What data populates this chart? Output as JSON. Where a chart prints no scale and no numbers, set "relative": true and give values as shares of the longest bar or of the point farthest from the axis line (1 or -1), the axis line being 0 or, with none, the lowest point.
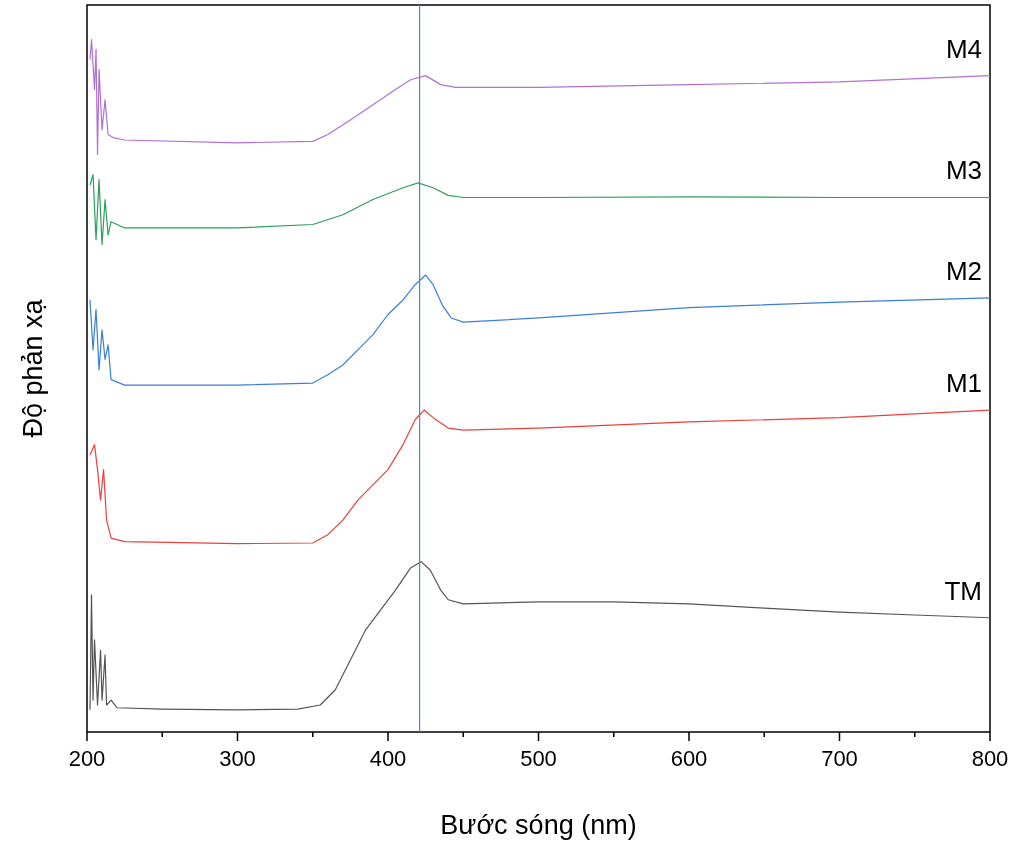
{
  "chart_data": {
    "type": "line",
    "relative": true,
    "xlabel": "Bước sóng (nm)",
    "ylabel": "Độ phản xạ",
    "xlim": [
      200,
      800
    ],
    "xticks": [
      200,
      {
        "value": 250,
        "label": null
      },
      300,
      {
        "value": 350,
        "label": null
      },
      400,
      {
        "value": 450,
        "label": null
      },
      500,
      {
        "value": 550,
        "label": null
      },
      600,
      {
        "value": 650,
        "label": null
      },
      700,
      {
        "value": 750,
        "label": null
      },
      800
    ],
    "grid": false,
    "tick_labels": "x",
    "ref_lines": [
      {
        "axis": "x",
        "value": 421,
        "color": "#3a8fdc"
      }
    ],
    "series": [
      {
        "name": "TM",
        "color": "#555555",
        "x": [
          202,
          203,
          204,
          205,
          207,
          209,
          210,
          212,
          213,
          216,
          220,
          250,
          300,
          340,
          355,
          365,
          375,
          385,
          395,
          405,
          415,
          422,
          428,
          435,
          440,
          450,
          500,
          550,
          600,
          650,
          700,
          750,
          800
        ],
        "values": [
          0.032,
          0.198,
          0.046,
          0.133,
          0.039,
          0.118,
          0.046,
          0.111,
          0.039,
          0.046,
          0.035,
          0.033,
          0.032,
          0.033,
          0.039,
          0.061,
          0.104,
          0.147,
          0.176,
          0.205,
          0.237,
          0.246,
          0.234,
          0.205,
          0.191,
          0.185,
          0.188,
          0.188,
          0.185,
          0.179,
          0.173,
          0.169,
          0.165
        ]
      },
      {
        "name": "M1",
        "color": "#e8413c",
        "x": [
          202,
          205,
          207,
          209,
          211,
          213,
          216,
          225,
          300,
          350,
          360,
          370,
          380,
          390,
          400,
          410,
          418,
          424,
          430,
          440,
          450,
          500,
          600,
          700,
          800
        ],
        "values": [
          0.4,
          0.415,
          0.379,
          0.335,
          0.379,
          0.306,
          0.28,
          0.275,
          0.272,
          0.273,
          0.285,
          0.306,
          0.335,
          0.357,
          0.379,
          0.415,
          0.451,
          0.465,
          0.454,
          0.439,
          0.436,
          0.439,
          0.448,
          0.454,
          0.465
        ]
      },
      {
        "name": "M2",
        "color": "#3a7fdc",
        "x": [
          202,
          204,
          206,
          208,
          210,
          212,
          214,
          216,
          225,
          300,
          350,
          360,
          370,
          380,
          390,
          400,
          410,
          418,
          425,
          430,
          436,
          442,
          450,
          500,
          600,
          700,
          800
        ],
        "values": [
          0.624,
          0.552,
          0.61,
          0.523,
          0.581,
          0.538,
          0.559,
          0.509,
          0.501,
          0.501,
          0.504,
          0.516,
          0.53,
          0.552,
          0.574,
          0.603,
          0.624,
          0.646,
          0.66,
          0.646,
          0.617,
          0.598,
          0.592,
          0.598,
          0.613,
          0.621,
          0.627
        ]
      },
      {
        "name": "M3",
        "color": "#2ca05a",
        "x": [
          202,
          204,
          206,
          208,
          210,
          212,
          214,
          216,
          225,
          300,
          350,
          370,
          390,
          410,
          420,
          430,
          440,
          450,
          500,
          600,
          700,
          800
        ],
        "values": [
          0.79,
          0.805,
          0.711,
          0.798,
          0.704,
          0.769,
          0.718,
          0.737,
          0.728,
          0.728,
          0.733,
          0.747,
          0.769,
          0.786,
          0.793,
          0.786,
          0.775,
          0.772,
          0.772,
          0.773,
          0.772,
          0.772
        ]
      },
      {
        "name": "M4",
        "color": "#b070d8",
        "x": [
          202,
          203,
          205,
          206,
          207,
          208,
          210,
          212,
          214,
          218,
          225,
          300,
          350,
          360,
          375,
          390,
          405,
          415,
          425,
          435,
          445,
          500,
          600,
          700,
          800
        ],
        "values": [
          0.971,
          1,
          0.928,
          0.986,
          0.834,
          0.957,
          0.87,
          0.913,
          0.863,
          0.858,
          0.855,
          0.851,
          0.853,
          0.863,
          0.884,
          0.906,
          0.928,
          0.942,
          0.948,
          0.935,
          0.931,
          0.931,
          0.935,
          0.939,
          0.948
        ]
      }
    ]
  }
}
